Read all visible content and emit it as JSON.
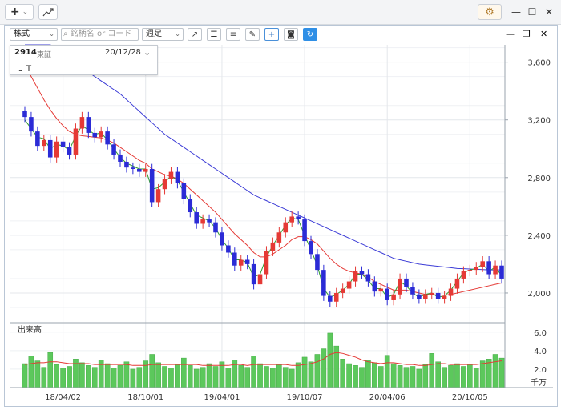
{
  "toolbar": {
    "add_label": "+",
    "add_caret": "⌄",
    "chart_icon": "chart-line-icon",
    "settings_icon": "gear-icon",
    "minimize": "—",
    "maximize": "☐",
    "close": "✕"
  },
  "chart_toolbar": {
    "market_select": "株式",
    "search_placeholder": "銘柄名 or コード",
    "period_select": "週足",
    "tools": [
      "trendline-icon",
      "hlines-icon",
      "hlines-right-icon",
      "pen-icon",
      "crosshair-icon",
      "camera-icon",
      "refresh-icon"
    ],
    "win_min": "—",
    "win_restore": "❐",
    "win_close": "✕"
  },
  "info": {
    "code": "2914",
    "exchange": "東証",
    "date": "20/12/28",
    "name": "ＪＴ",
    "collapse_icon": "chevron-circle-icon"
  },
  "chart_data": [
    {
      "type": "candlestick",
      "title": "",
      "period": "weekly",
      "x_tick_labels": [
        "18/04/02",
        "18/10/01",
        "19/04/01",
        "19/10/07",
        "20/04/06",
        "20/10/05"
      ],
      "y_tick_labels": [
        "2,000",
        "2,400",
        "2,800",
        "3,200",
        "3,600"
      ],
      "ylim": [
        1800,
        3720
      ],
      "up_color": "#e53935",
      "down_color": "#2b2bd6",
      "dates": [
        "18/01/08",
        "18/01/22",
        "18/02/05",
        "18/02/19",
        "18/03/05",
        "18/03/19",
        "18/04/02",
        "18/04/16",
        "18/05/07",
        "18/05/21",
        "18/06/04",
        "18/06/18",
        "18/07/02",
        "18/07/16",
        "18/07/30",
        "18/08/13",
        "18/08/27",
        "18/09/10",
        "18/09/24",
        "18/10/08",
        "18/10/22",
        "18/11/05",
        "18/11/19",
        "18/12/03",
        "18/12/17",
        "19/01/07",
        "19/01/21",
        "19/02/04",
        "19/02/18",
        "19/03/04",
        "19/03/18",
        "19/04/01",
        "19/04/15",
        "19/05/07",
        "19/05/20",
        "19/06/03",
        "19/06/17",
        "19/07/01",
        "19/07/16",
        "19/07/29",
        "19/08/13",
        "19/08/26",
        "19/09/09",
        "19/09/24",
        "19/10/07",
        "19/10/21",
        "19/11/05",
        "19/11/18",
        "19/12/02",
        "19/12/16",
        "20/01/06",
        "20/01/20",
        "20/02/03",
        "20/02/17",
        "20/03/02",
        "20/03/16",
        "20/03/30",
        "20/04/13",
        "20/04/27",
        "20/05/11",
        "20/05/25",
        "20/06/08",
        "20/06/22",
        "20/07/06",
        "20/07/20",
        "20/08/03",
        "20/08/17",
        "20/08/31",
        "20/09/14",
        "20/09/28",
        "20/10/12",
        "20/10/26",
        "20/11/09",
        "20/11/24",
        "20/12/07",
        "20/12/21"
      ],
      "closes": [
        3220,
        3120,
        3020,
        3060,
        2940,
        3050,
        3010,
        2960,
        3140,
        3220,
        3110,
        3080,
        3120,
        3030,
        2960,
        2910,
        2870,
        2860,
        2840,
        2860,
        2630,
        2720,
        2790,
        2840,
        2760,
        2650,
        2560,
        2480,
        2510,
        2490,
        2420,
        2330,
        2280,
        2190,
        2230,
        2200,
        2060,
        2130,
        2290,
        2350,
        2420,
        2490,
        2530,
        2510,
        2360,
        2270,
        2160,
        1980,
        1940,
        2000,
        2030,
        2080,
        2150,
        2130,
        2080,
        2010,
        2030,
        1950,
        1990,
        2100,
        2040,
        1990,
        1960,
        1990,
        2000,
        1960,
        1980,
        2030,
        2100,
        2150,
        2160,
        2180,
        2220,
        2130,
        2190,
        2100
      ],
      "ma_short": [
        3200,
        3140,
        3080,
        3070,
        3000,
        3030,
        3020,
        2990,
        3090,
        3160,
        3130,
        3100,
        3110,
        3060,
        3000,
        2940,
        2900,
        2880,
        2860,
        2860,
        2720,
        2730,
        2770,
        2810,
        2780,
        2700,
        2620,
        2540,
        2520,
        2500,
        2450,
        2370,
        2310,
        2230,
        2230,
        2210,
        2110,
        2130,
        2250,
        2330,
        2400,
        2470,
        2520,
        2510,
        2400,
        2300,
        2190,
        2030,
        1970,
        1990,
        2020,
        2060,
        2130,
        2130,
        2090,
        2030,
        2030,
        1970,
        1990,
        2080,
        2050,
        2000,
        1970,
        1990,
        2000,
        1970,
        1980,
        2020,
        2080,
        2140,
        2160,
        2170,
        2200,
        2150,
        2180,
        2120
      ],
      "ma_mid": [
        3580,
        3500,
        3420,
        3340,
        3270,
        3210,
        3160,
        3120,
        3100,
        3090,
        3085,
        3080,
        3075,
        3060,
        3040,
        3010,
        2980,
        2950,
        2920,
        2900,
        2860,
        2840,
        2820,
        2810,
        2790,
        2760,
        2720,
        2680,
        2640,
        2600,
        2560,
        2510,
        2460,
        2410,
        2370,
        2330,
        2280,
        2250,
        2250,
        2270,
        2300,
        2330,
        2370,
        2390,
        2390,
        2370,
        2340,
        2290,
        2240,
        2200,
        2170,
        2150,
        2140,
        2130,
        2110,
        2080,
        2060,
        2040,
        2020,
        2020,
        2020,
        2010,
        2000,
        1990,
        1990,
        1985,
        1985,
        1990,
        2000,
        2010,
        2020,
        2030,
        2040,
        2050,
        2060,
        2070
      ],
      "ma_long": [
        3900,
        3860,
        3820,
        3780,
        3740,
        3700,
        3660,
        3620,
        3590,
        3560,
        3530,
        3500,
        3470,
        3440,
        3410,
        3380,
        3340,
        3300,
        3260,
        3220,
        3180,
        3140,
        3100,
        3070,
        3040,
        3010,
        2980,
        2950,
        2920,
        2890,
        2860,
        2830,
        2800,
        2770,
        2740,
        2710,
        2680,
        2660,
        2640,
        2620,
        2600,
        2580,
        2560,
        2540,
        2520,
        2500,
        2480,
        2460,
        2440,
        2420,
        2400,
        2380,
        2360,
        2340,
        2320,
        2300,
        2280,
        2260,
        2240,
        2230,
        2220,
        2210,
        2200,
        2195,
        2190,
        2185,
        2180,
        2175,
        2170,
        2168,
        2166,
        2164,
        2162,
        2160,
        2160,
        2160
      ]
    },
    {
      "type": "bar",
      "title": "出来高",
      "unit_label": "千万",
      "y_tick_labels": [
        "2.0",
        "4.0",
        "6.0"
      ],
      "ylim": [
        0,
        6.5
      ],
      "bar_color": "#5cc85c",
      "values": [
        2.6,
        3.4,
        2.9,
        2.2,
        3.8,
        2.5,
        2.1,
        2.3,
        3.1,
        2.7,
        2.4,
        2.2,
        3.0,
        2.6,
        2.1,
        2.4,
        2.8,
        2.0,
        2.2,
        2.9,
        3.6,
        2.7,
        2.3,
        2.1,
        2.5,
        3.2,
        2.4,
        2.0,
        2.2,
        2.6,
        2.3,
        2.8,
        2.1,
        3.0,
        2.4,
        2.2,
        3.4,
        2.6,
        2.3,
        2.1,
        2.5,
        2.2,
        2.0,
        2.7,
        3.3,
        2.8,
        3.6,
        4.2,
        5.9,
        4.5,
        3.1,
        2.6,
        2.4,
        2.2,
        3.0,
        2.7,
        2.3,
        3.5,
        2.6,
        2.4,
        2.2,
        2.3,
        2.0,
        2.5,
        3.7,
        2.8,
        2.2,
        2.4,
        2.6,
        2.3,
        2.5,
        2.1,
        2.9,
        3.1,
        3.6,
        3.2
      ],
      "ma": [
        2.5,
        2.6,
        2.7,
        2.7,
        2.8,
        2.8,
        2.7,
        2.6,
        2.6,
        2.6,
        2.6,
        2.5,
        2.5,
        2.5,
        2.5,
        2.5,
        2.5,
        2.4,
        2.4,
        2.4,
        2.5,
        2.5,
        2.5,
        2.5,
        2.5,
        2.5,
        2.5,
        2.5,
        2.4,
        2.4,
        2.4,
        2.4,
        2.4,
        2.5,
        2.5,
        2.4,
        2.5,
        2.5,
        2.5,
        2.5,
        2.5,
        2.5,
        2.4,
        2.4,
        2.5,
        2.6,
        2.8,
        3.1,
        3.6,
        3.8,
        3.7,
        3.5,
        3.3,
        3.0,
        2.8,
        2.7,
        2.6,
        2.7,
        2.7,
        2.6,
        2.5,
        2.5,
        2.4,
        2.4,
        2.5,
        2.6,
        2.6,
        2.5,
        2.5,
        2.5,
        2.5,
        2.5,
        2.6,
        2.7,
        2.8,
        2.9
      ]
    }
  ]
}
